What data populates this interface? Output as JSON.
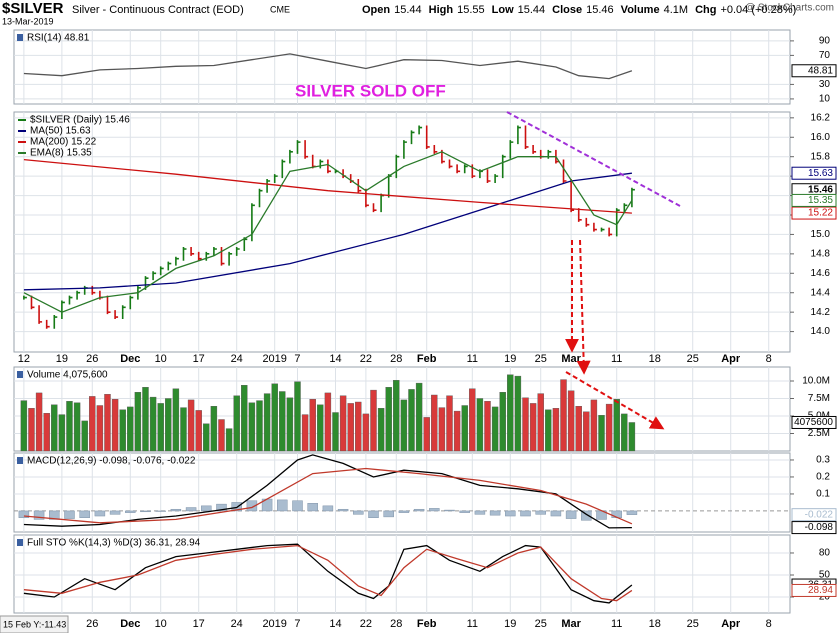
{
  "header": {
    "symbol": "$SILVER",
    "name": "Silver - Continuous Contract (EOD)",
    "exchange": "CME",
    "date": "13-Mar-2019",
    "quote": [
      {
        "label": "Open",
        "value": "15.44"
      },
      {
        "label": "High",
        "value": "15.55"
      },
      {
        "label": "Low",
        "value": "15.44"
      },
      {
        "label": "Close",
        "value": "15.46"
      },
      {
        "label": "Volume",
        "value": "4.1M"
      },
      {
        "label": "Chg",
        "value": "+0.04 (+0.28%)"
      }
    ],
    "watermark": "@ StockCharts.com",
    "cursor": "15 Feb Y:-11.43"
  },
  "chart_data": [
    {
      "type": "line",
      "title": "RSI(14) 48.81",
      "ylim": [
        3,
        105
      ],
      "yticks": [
        10,
        30,
        70,
        90
      ],
      "grid": true,
      "last_label": "48.81",
      "series": [
        {
          "color": "#555555",
          "x": [
            0,
            5,
            10,
            15,
            20,
            25,
            30,
            35,
            40,
            45,
            50,
            55,
            60,
            65,
            70,
            73,
            77,
            80
          ],
          "values": [
            45,
            42,
            50,
            52,
            55,
            56,
            64,
            72,
            62,
            52,
            64,
            63,
            56,
            62,
            54,
            42,
            38,
            48.81
          ]
        }
      ]
    },
    {
      "type": "price",
      "annotation": "SILVER SOLD OFF",
      "ylim": [
        13.79,
        16.26
      ],
      "grid": true,
      "yticks": [
        {
          "value": 14.0,
          "label": "14.0"
        },
        14.2,
        14.4,
        14.6,
        14.8,
        {
          "value": 15.0,
          "label": "15.0"
        },
        15.2,
        15.4,
        15.6,
        15.8,
        {
          "value": 16.0,
          "label": "16.0"
        },
        16.2
      ],
      "xlim": [
        -1.3,
        100.8
      ],
      "xticks": [
        {
          "value": 0,
          "label": "12"
        },
        {
          "value": 5,
          "label": "19"
        },
        {
          "value": 9,
          "label": "26"
        },
        {
          "value": 14,
          "label": "Dec"
        },
        {
          "value": 18,
          "label": "10"
        },
        {
          "value": 23,
          "label": "17"
        },
        {
          "value": 28,
          "label": "24"
        },
        {
          "value": 33,
          "label": "2019"
        },
        {
          "value": 36,
          "label": "7"
        },
        {
          "value": 41,
          "label": "14"
        },
        {
          "value": 45,
          "label": "22"
        },
        {
          "value": 49,
          "label": "28"
        },
        {
          "value": 53,
          "label": "Feb"
        },
        {
          "value": 59,
          "label": "11"
        },
        {
          "value": 64,
          "label": "19"
        },
        {
          "value": 68,
          "label": "25"
        },
        {
          "value": 72,
          "label": "Mar"
        },
        {
          "value": 78,
          "label": "11"
        },
        {
          "value": 83,
          "label": "18"
        },
        {
          "value": 88,
          "label": "25"
        },
        {
          "value": 93,
          "label": "Apr"
        },
        {
          "value": 98,
          "label": "8"
        }
      ],
      "series": [
        {
          "name": "$SILVER (Daily) 15.46",
          "kind": "bars",
          "color": "#157a15",
          "down_color": "#cc1010",
          "last_label": "15.46",
          "values": [
            14.35,
            14.25,
            14.1,
            14.05,
            14.15,
            14.3,
            14.35,
            14.4,
            14.45,
            14.4,
            14.35,
            14.2,
            14.15,
            14.25,
            14.35,
            14.45,
            14.55,
            14.6,
            14.65,
            14.7,
            14.75,
            14.85,
            14.8,
            14.75,
            14.8,
            14.85,
            14.7,
            14.8,
            14.85,
            14.95,
            15.3,
            15.45,
            15.55,
            15.6,
            15.75,
            15.85,
            15.95,
            15.8,
            15.7,
            15.75,
            15.65,
            15.65,
            15.6,
            15.55,
            15.45,
            15.3,
            15.25,
            15.4,
            15.6,
            15.8,
            15.95,
            16.05,
            16.1,
            15.9,
            15.85,
            15.75,
            15.7,
            15.65,
            15.7,
            15.6,
            15.65,
            15.55,
            15.6,
            15.8,
            15.95,
            16.1,
            15.9,
            15.85,
            15.8,
            15.85,
            15.75,
            15.55,
            15.25,
            15.15,
            15.1,
            15.05,
            15.05,
            15.0,
            15.25,
            15.3,
            15.46
          ]
        },
        {
          "name": "MA(50) 15.63",
          "color": "#00007a",
          "last_label": "15.63",
          "x": [
            0,
            10,
            20,
            35,
            50,
            62,
            72,
            80
          ],
          "values": [
            14.43,
            14.45,
            14.5,
            14.7,
            15.0,
            15.3,
            15.55,
            15.63
          ]
        },
        {
          "name": "MA(200) 15.22",
          "color": "#cc1010",
          "last_label": "15.22",
          "x": [
            0,
            20,
            40,
            60,
            80
          ],
          "values": [
            15.77,
            15.62,
            15.45,
            15.33,
            15.22
          ]
        },
        {
          "name": "EMA(8) 15.35",
          "color": "#2a7a2a",
          "last_label": "15.35",
          "x": [
            0,
            5,
            10,
            15,
            20,
            25,
            30,
            35,
            40,
            45,
            50,
            55,
            60,
            65,
            70,
            75,
            78,
            80
          ],
          "values": [
            14.4,
            14.2,
            14.35,
            14.4,
            14.65,
            14.78,
            15.0,
            15.65,
            15.72,
            15.45,
            15.7,
            15.85,
            15.65,
            15.8,
            15.8,
            15.2,
            15.1,
            15.35
          ]
        }
      ]
    },
    {
      "type": "bar",
      "title": "Volume 4,075,600",
      "ylim": [
        0,
        12000000
      ],
      "grid": true,
      "last_label": "4075600",
      "color": "#2e8b2e",
      "down_color": "#d83a3a",
      "yticks": [
        {
          "value": 2500000,
          "label": "2.5M"
        },
        {
          "value": 5000000,
          "label": "5.0M"
        },
        {
          "value": 7500000,
          "label": "7.5M"
        },
        {
          "value": 10000000,
          "label": "10.0M"
        }
      ],
      "values": [
        7200000,
        6100000,
        8300000,
        5400000,
        6600000,
        5200000,
        7100000,
        6900000,
        4300000,
        7800000,
        6500000,
        8100000,
        7400000,
        5900000,
        6300000,
        8400000,
        9100000,
        7700000,
        6800000,
        7500000,
        8900000,
        6200000,
        7300000,
        5800000,
        3900000,
        6400000,
        4500000,
        3200000,
        7900000,
        9400000,
        6900000,
        7200000,
        8200000,
        9600000,
        8500000,
        7600000,
        9900000,
        5200000,
        7400000,
        6600000,
        8300000,
        5500000,
        7900000,
        6800000,
        7000000,
        5300000,
        8700000,
        6100000,
        9100000,
        10100000,
        7300000,
        8800000,
        9700000,
        4800000,
        8000000,
        6200000,
        7900000,
        5700000,
        6500000,
        8900000,
        7500000,
        7100000,
        6300000,
        8400000,
        10900000,
        10700000,
        7600000,
        6800000,
        8200000,
        5900000,
        6100000,
        10200000,
        8600000,
        6400000,
        5600000,
        7300000,
        5100000,
        6700000,
        7400000,
        5300000,
        4075600
      ]
    },
    {
      "type": "macd",
      "title": "MACD(12,26,9) -0.098, -0.076, -0.022",
      "ylim": [
        -0.124,
        0.341
      ],
      "yticks": [
        0.1,
        0.2,
        0.3
      ],
      "grid": true,
      "series": [
        {
          "kind": "histogram",
          "color": "#a9bccf",
          "last_label": "-0.022",
          "x": [
            0,
            2,
            4,
            6,
            8,
            10,
            12,
            14,
            16,
            18,
            20,
            22,
            24,
            26,
            28,
            30,
            32,
            34,
            36,
            38,
            40,
            42,
            44,
            46,
            48,
            50,
            52,
            54,
            56,
            58,
            60,
            62,
            64,
            66,
            68,
            70,
            72,
            74,
            76,
            78,
            80
          ],
          "values": [
            -0.04,
            -0.05,
            -0.05,
            -0.045,
            -0.04,
            -0.03,
            -0.02,
            -0.01,
            -0.005,
            0.0,
            0.01,
            0.02,
            0.03,
            0.04,
            0.05,
            0.06,
            0.07,
            0.065,
            0.06,
            0.045,
            0.03,
            0.01,
            -0.02,
            -0.04,
            -0.035,
            -0.01,
            0.01,
            0.015,
            0.005,
            -0.01,
            -0.02,
            -0.025,
            -0.03,
            -0.03,
            -0.02,
            -0.03,
            -0.045,
            -0.055,
            -0.05,
            -0.04,
            -0.022
          ]
        },
        {
          "color": "#000000",
          "last_label": "-0.098",
          "x": [
            0,
            5,
            10,
            15,
            20,
            25,
            28,
            32,
            36,
            38,
            42,
            46,
            50,
            55,
            60,
            65,
            70,
            74,
            77,
            80
          ],
          "values": [
            -0.08,
            -0.09,
            -0.08,
            -0.05,
            -0.03,
            0,
            0.02,
            0.15,
            0.3,
            0.33,
            0.28,
            0.2,
            0.24,
            0.22,
            0.15,
            0.13,
            0.1,
            -0.02,
            -0.1,
            -0.098
          ]
        },
        {
          "color": "#c0392b",
          "x": [
            0,
            10,
            20,
            30,
            38,
            45,
            52,
            60,
            68,
            74,
            80
          ],
          "values": [
            -0.03,
            -0.07,
            -0.05,
            0.02,
            0.22,
            0.25,
            0.22,
            0.18,
            0.12,
            0.04,
            -0.076
          ]
        }
      ]
    },
    {
      "type": "line",
      "title": "Full STO %K(14,3) %D(3) 36.31, 28.94",
      "ylim": [
        -1.8,
        104.5
      ],
      "yticks": [
        20,
        50,
        80
      ],
      "grid": true,
      "series": [
        {
          "color": "#000000",
          "last_label": "36.31",
          "x": [
            0,
            4,
            8,
            12,
            16,
            20,
            24,
            28,
            32,
            36,
            40,
            44,
            46,
            48,
            50,
            53,
            56,
            60,
            63,
            66,
            68,
            72,
            75,
            77,
            80
          ],
          "values": [
            25,
            20,
            45,
            30,
            60,
            75,
            80,
            85,
            90,
            92,
            55,
            25,
            18,
            35,
            85,
            90,
            70,
            55,
            75,
            90,
            88,
            30,
            15,
            12,
            36.31
          ]
        },
        {
          "color": "#c0392b",
          "last_label": "28.94",
          "x": [
            0,
            5,
            10,
            15,
            20,
            25,
            30,
            36,
            40,
            44,
            47,
            50,
            53,
            57,
            61,
            65,
            68,
            72,
            76,
            78,
            80
          ],
          "values": [
            30,
            25,
            40,
            50,
            70,
            78,
            85,
            90,
            70,
            35,
            22,
            60,
            85,
            72,
            60,
            80,
            88,
            45,
            18,
            15,
            28.94
          ]
        }
      ]
    }
  ]
}
